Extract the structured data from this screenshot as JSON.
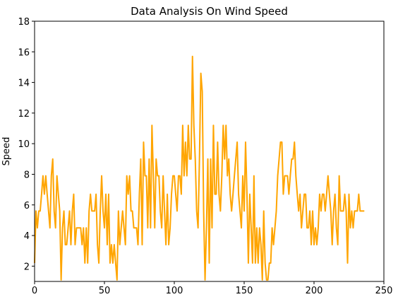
{
  "chart_data": {
    "type": "line",
    "title": "Data Analysis On Wind Speed",
    "xlabel": "",
    "ylabel": "Speed",
    "xlim": [
      0,
      250
    ],
    "ylim": [
      1,
      18
    ],
    "xticks": [
      0,
      50,
      100,
      150,
      200,
      250
    ],
    "yticks": [
      2,
      4,
      6,
      8,
      10,
      12,
      14,
      16,
      18
    ],
    "grid": false,
    "line_color": "#FFA500",
    "series": [
      {
        "values": [
          2.2,
          5.6,
          4.5,
          5.6,
          5.6,
          6.7,
          7.9,
          6.7,
          7.9,
          6.7,
          5.6,
          4.5,
          7.9,
          9.0,
          5.6,
          4.5,
          7.9,
          6.7,
          5.6,
          1.1,
          4.5,
          5.6,
          3.4,
          3.4,
          4.5,
          5.6,
          3.4,
          5.6,
          6.7,
          3.4,
          4.5,
          4.5,
          4.5,
          4.5,
          3.4,
          4.5,
          2.2,
          4.5,
          2.2,
          5.6,
          6.7,
          5.6,
          5.6,
          5.6,
          6.7,
          3.4,
          2.2,
          5.6,
          7.9,
          5.6,
          4.5,
          6.7,
          3.4,
          6.7,
          2.2,
          3.4,
          2.2,
          3.4,
          2.2,
          1.1,
          5.6,
          3.4,
          4.5,
          5.6,
          4.5,
          3.4,
          7.9,
          6.7,
          7.9,
          5.6,
          5.6,
          4.5,
          4.5,
          4.5,
          3.4,
          6.7,
          9.0,
          3.4,
          10.1,
          7.9,
          7.9,
          4.5,
          9.0,
          4.5,
          11.2,
          7.9,
          4.5,
          9.0,
          7.9,
          7.9,
          5.6,
          4.5,
          7.9,
          5.6,
          3.4,
          6.7,
          3.4,
          4.5,
          6.7,
          7.9,
          7.9,
          6.7,
          5.6,
          7.9,
          7.9,
          6.7,
          11.2,
          7.9,
          10.1,
          7.9,
          11.2,
          9.0,
          9.0,
          15.7,
          11.2,
          9.0,
          5.6,
          4.5,
          9.0,
          14.6,
          13.4,
          5.6,
          1.1,
          4.5,
          9.0,
          2.2,
          9.0,
          4.5,
          11.2,
          6.7,
          6.7,
          10.1,
          6.7,
          5.6,
          7.9,
          11.2,
          9.0,
          11.2,
          7.9,
          9.0,
          6.7,
          5.6,
          6.7,
          7.9,
          9.0,
          10.1,
          6.7,
          5.6,
          4.5,
          7.9,
          5.6,
          10.1,
          6.7,
          2.2,
          6.7,
          4.5,
          2.2,
          7.9,
          2.2,
          4.5,
          2.2,
          4.5,
          3.4,
          1.1,
          5.6,
          2.2,
          1.1,
          1.1,
          2.2,
          2.2,
          4.5,
          3.4,
          4.5,
          5.6,
          7.9,
          9.0,
          10.1,
          10.1,
          6.7,
          7.9,
          7.9,
          7.9,
          6.7,
          7.9,
          9.0,
          9.0,
          10.1,
          7.9,
          6.7,
          5.6,
          6.7,
          4.5,
          5.6,
          6.7,
          6.7,
          4.5,
          4.5,
          5.6,
          3.4,
          5.6,
          3.4,
          4.5,
          3.4,
          4.5,
          6.7,
          5.6,
          6.7,
          6.7,
          5.6,
          6.7,
          7.9,
          6.7,
          5.6,
          3.4,
          5.6,
          6.7,
          4.5,
          3.4,
          7.9,
          5.6,
          5.6,
          5.6,
          6.7,
          5.6,
          2.2,
          6.7,
          4.5,
          5.6,
          4.5,
          5.6,
          5.6,
          5.6,
          6.7,
          5.6,
          5.6,
          5.6,
          5.6
        ]
      }
    ]
  }
}
